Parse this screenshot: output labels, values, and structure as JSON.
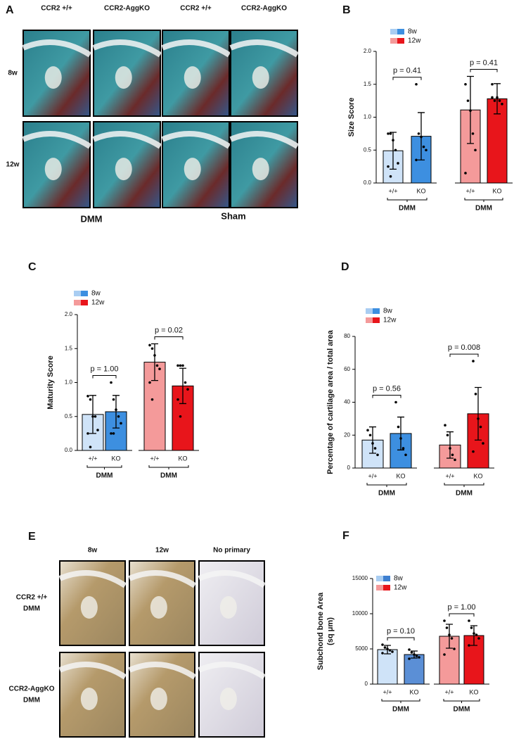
{
  "image_panels": [
    {
      "panel": "A",
      "columns": [
        "CCR2 +/+",
        "CCR2-AggKO",
        "CCR2 +/+",
        "CCR2-AggKO"
      ],
      "rows": [
        [
          "8w"
        ],
        [
          "12w"
        ]
      ],
      "groups": [
        "DMM",
        "Sham"
      ]
    },
    {
      "panel": "E",
      "columns": [
        "8w",
        "12w",
        "No primary"
      ],
      "rows": [
        [
          "CCR2 +/+",
          "DMM"
        ],
        [
          "CCR2-AggKO",
          "DMM"
        ]
      ]
    }
  ],
  "chart_data": [
    {
      "panel": "B",
      "type": "bar",
      "ylabel": [
        "Size Score"
      ],
      "ylim": [
        0,
        2
      ],
      "yticks": [
        {
          "value": 0,
          "label": "0.0"
        },
        {
          "value": 0.5,
          "label": "0.5"
        },
        {
          "value": 1,
          "label": "1.0"
        },
        {
          "value": 1.5,
          "label": "1.5"
        },
        {
          "value": 2,
          "label": "2.0"
        }
      ],
      "series": [
        {
          "name": "8w",
          "color": [
            "#a9cdf2",
            "#3d8fe0"
          ]
        },
        {
          "name": "12w",
          "color": [
            "#f49a9a",
            "#e8151b"
          ]
        }
      ],
      "categories": [
        "+/+",
        "KO",
        "+/+",
        "KO"
      ],
      "groups": [
        "DMM",
        "DMM"
      ],
      "values": [
        0.49,
        0.71,
        1.11,
        1.28
      ],
      "errors": [
        0.28,
        0.36,
        0.51,
        0.23
      ],
      "colors": [
        "#cfe3f8",
        "#3d8fe0",
        "#f49a9a",
        "#e8151b"
      ],
      "points": [
        [
          0.75,
          0.75,
          0.65,
          0.5,
          0.3,
          0.25,
          0.1
        ],
        [
          1.5,
          0.75,
          0.7,
          0.55,
          0.5,
          0.35
        ],
        [
          1.5,
          1.25,
          1.1,
          0.75,
          0.5,
          0.15
        ],
        [
          1.5,
          1.25,
          1.3,
          1.25,
          1.2,
          1.3
        ]
      ],
      "p_values": [
        "p = 0.41",
        "p = 0.41"
      ]
    },
    {
      "panel": "C",
      "type": "bar",
      "ylabel": [
        "Maturity Score"
      ],
      "ylim": [
        0,
        2
      ],
      "yticks": [
        {
          "value": 0,
          "label": "0.0"
        },
        {
          "value": 0.5,
          "label": "0.5"
        },
        {
          "value": 1,
          "label": "1.0"
        },
        {
          "value": 1.5,
          "label": "1.5"
        },
        {
          "value": 2,
          "label": "2.0"
        }
      ],
      "series": [
        {
          "name": "8w",
          "color": [
            "#a9cdf2",
            "#3d8fe0"
          ]
        },
        {
          "name": "12w",
          "color": [
            "#f49a9a",
            "#e8151b"
          ]
        }
      ],
      "categories": [
        "+/+",
        "KO",
        "+/+",
        "KO"
      ],
      "groups": [
        "DMM",
        "DMM"
      ],
      "values": [
        0.53,
        0.57,
        1.3,
        0.95
      ],
      "errors": [
        0.28,
        0.24,
        0.27,
        0.26
      ],
      "colors": [
        "#cfe3f8",
        "#3d8fe0",
        "#f49a9a",
        "#e8151b"
      ],
      "points": [
        [
          0.8,
          0.75,
          0.5,
          0.5,
          0.3,
          0.25,
          0.05
        ],
        [
          1.0,
          0.75,
          0.6,
          0.5,
          0.4,
          0.25,
          0.25
        ],
        [
          1.55,
          1.5,
          1.4,
          1.25,
          1.2,
          1.0,
          0.75
        ],
        [
          1.25,
          1.25,
          1.25,
          1.0,
          0.9,
          0.75,
          0.5
        ]
      ],
      "p_values": [
        "p = 1.00",
        "p = 0.02"
      ]
    },
    {
      "panel": "D",
      "type": "bar",
      "ylabel": [
        "Percentage of cartilage area / total area"
      ],
      "ylim": [
        0,
        80
      ],
      "yticks": [
        0,
        20,
        40,
        60,
        80
      ],
      "series": [
        {
          "name": "8w",
          "color": [
            "#a9cdf2",
            "#3d8fe0"
          ]
        },
        {
          "name": "12w",
          "color": [
            "#f49a9a",
            "#e8151b"
          ]
        }
      ],
      "categories": [
        "+/+",
        "KO",
        "+/+",
        "KO"
      ],
      "groups": [
        "DMM",
        "DMM"
      ],
      "values": [
        17,
        21,
        14,
        33
      ],
      "errors": [
        8,
        10,
        8,
        16
      ],
      "colors": [
        "#cfe3f8",
        "#3d8fe0",
        "#f49a9a",
        "#e8151b"
      ],
      "points": [
        [
          23,
          20,
          15,
          12,
          8
        ],
        [
          40,
          25,
          18,
          12,
          8
        ],
        [
          26,
          20,
          12,
          8,
          5
        ],
        [
          65,
          45,
          30,
          25,
          15,
          10
        ]
      ],
      "p_values": [
        "p = 0.56",
        "p = 0.008"
      ]
    },
    {
      "panel": "F",
      "type": "bar",
      "ylabel": [
        "Subchond bone  Area",
        "(sq μm)"
      ],
      "ylim": [
        0,
        15000
      ],
      "yticks": [
        0,
        5000,
        10000,
        15000
      ],
      "series": [
        {
          "name": "8w",
          "color": [
            "#a9cdf2",
            "#3d7fd0"
          ]
        },
        {
          "name": "12w",
          "color": [
            "#f49a9a",
            "#e8151b"
          ]
        }
      ],
      "categories": [
        "+/+",
        "KO",
        "+/+",
        "KO"
      ],
      "groups": [
        "DMM",
        "DMM"
      ],
      "values": [
        4900,
        4200,
        6800,
        6900
      ],
      "errors": [
        600,
        500,
        1700,
        1400
      ],
      "colors": [
        "#cfe3f8",
        "#5b8fd6",
        "#f49a9a",
        "#e8151b"
      ],
      "points": [
        [
          5600,
          5200,
          5000,
          4800,
          4600,
          4400
        ],
        [
          4900,
          4500,
          4200,
          4000,
          3800,
          3600
        ],
        [
          9000,
          8000,
          7000,
          6500,
          5000,
          4200
        ],
        [
          9000,
          8000,
          7200,
          7000,
          6500,
          5500
        ]
      ],
      "p_values": [
        "p = 0.10",
        "p = 1.00"
      ]
    }
  ]
}
